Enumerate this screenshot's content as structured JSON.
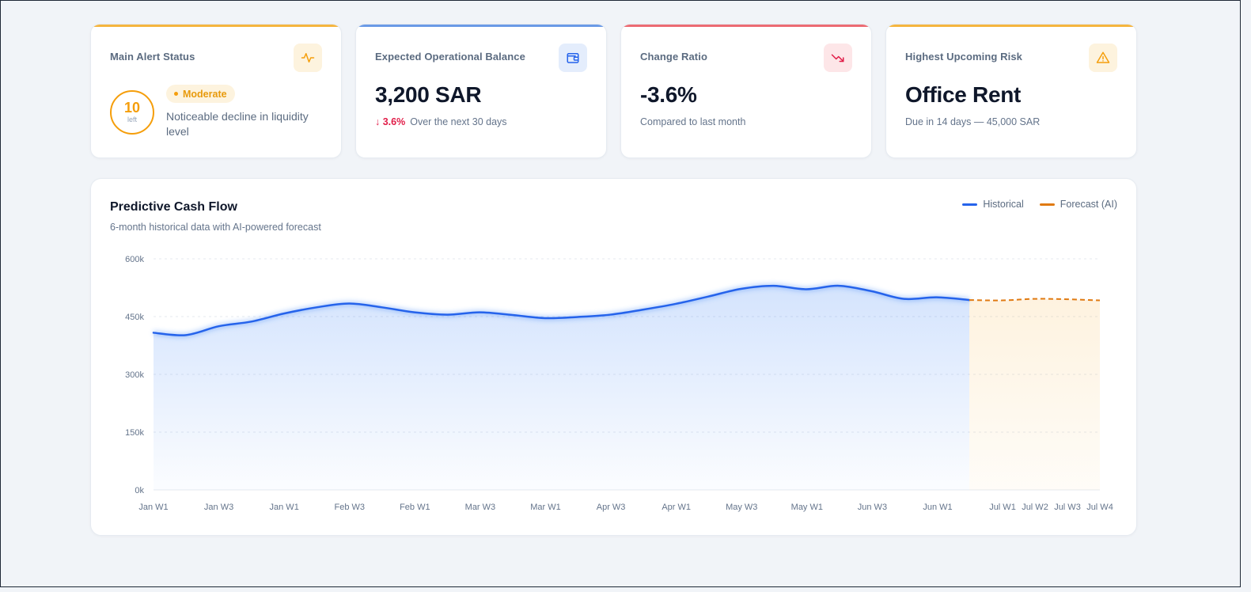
{
  "cards": {
    "alert": {
      "title": "Main Alert Status",
      "score": "10",
      "score_label": "left",
      "badge": "Moderate",
      "description": "Noticeable decline in liquidity level",
      "accent": "#f5b53f",
      "icon": "activity-icon"
    },
    "balance": {
      "title": "Expected Operational Balance",
      "value": "3,200 SAR",
      "delta": "3.6%",
      "delta_direction": "down",
      "note": "Over the next 30 days",
      "accent": "#6a9ae6",
      "icon": "wallet-icon"
    },
    "change": {
      "title": "Change Ratio",
      "value": "-3.6%",
      "note": "Compared to last month",
      "accent": "#ec6b73",
      "icon": "trending-down-icon"
    },
    "risk": {
      "title": "Highest Upcoming Risk",
      "value": "Office Rent",
      "note": "Due in 14 days — 45,000 SAR",
      "accent": "#f5b53f",
      "icon": "warning-icon"
    }
  },
  "chart": {
    "title": "Predictive Cash Flow",
    "subtitle": "6-month historical data with AI-powered forecast",
    "legend": [
      {
        "label": "Historical",
        "color": "#2563eb"
      },
      {
        "label": "Forecast (AI)",
        "color": "#e07a12"
      }
    ]
  },
  "chart_data": {
    "type": "area",
    "y_ticks": [
      "600k",
      "450k",
      "300k",
      "150k",
      "0k"
    ],
    "ylim": [
      0,
      600000
    ],
    "grid": true,
    "x_tick_labels": [
      "Jan W1",
      "Jan W3",
      "Jan W1",
      "Feb W3",
      "Feb W1",
      "Mar W3",
      "Mar W1",
      "Apr W3",
      "Apr W1",
      "May W3",
      "May W1",
      "Jun W3",
      "Jun W1",
      "Jul W1",
      "Jul W2",
      "Jul W3",
      "Jul W4"
    ],
    "series": [
      {
        "name": "Historical",
        "values": [
          408000,
          402000,
          425000,
          437000,
          458000,
          474000,
          484000,
          474000,
          461000,
          455000,
          461000,
          454000,
          446000,
          449000,
          455000,
          468000,
          483000,
          502000,
          522000,
          530000,
          521000,
          530000,
          516000,
          496000,
          500000,
          493000
        ]
      },
      {
        "name": "Forecast (AI)",
        "values": [
          493000,
          492000,
          496000,
          495000,
          492000
        ]
      }
    ]
  }
}
